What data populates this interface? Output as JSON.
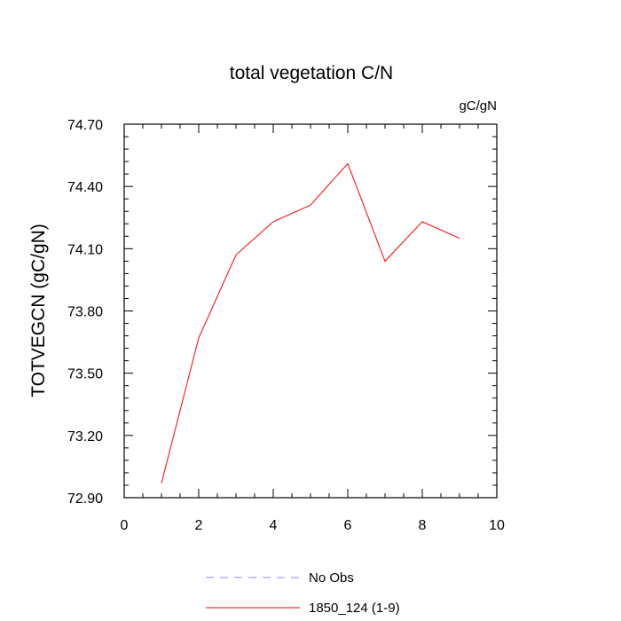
{
  "chart_data": {
    "type": "line",
    "title": "total vegetation C/N",
    "units_label": "gC/gN",
    "xlabel": "",
    "ylabel": "TOTVEGCN  (gC/gN)",
    "xlim": [
      0,
      10
    ],
    "ylim": [
      72.9,
      74.7
    ],
    "x_ticks": [
      0,
      2,
      4,
      6,
      8,
      10
    ],
    "x_tick_labels": [
      "0",
      "2",
      "4",
      "6",
      "8",
      "10"
    ],
    "y_ticks": [
      72.9,
      73.2,
      73.5,
      73.8,
      74.1,
      74.4,
      74.7
    ],
    "y_tick_labels": [
      "72.90",
      "73.20",
      "73.50",
      "73.80",
      "74.10",
      "74.40",
      "74.70"
    ],
    "grid": false,
    "legend_position": "bottom",
    "series": [
      {
        "name": "No Obs",
        "color": "#8c8cff",
        "style": "dashed",
        "x": [],
        "y": []
      },
      {
        "name": "1850_124 (1-9)",
        "color": "#ff0000",
        "style": "solid",
        "x": [
          1,
          2,
          3,
          4,
          5,
          6,
          7,
          8,
          9
        ],
        "y": [
          72.97,
          73.67,
          74.07,
          74.23,
          74.31,
          74.51,
          74.04,
          74.23,
          74.15
        ]
      }
    ]
  }
}
